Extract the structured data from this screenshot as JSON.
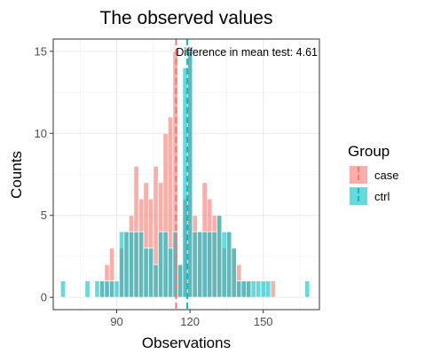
{
  "chart_data": {
    "type": "bar",
    "title": "The observed values",
    "xlabel": "Observations",
    "ylabel": "Counts",
    "xlim": [
      64,
      173
    ],
    "ylim": [
      -0.75,
      15.75
    ],
    "x_ticks": [
      90,
      120,
      150
    ],
    "y_ticks": [
      0,
      5,
      10,
      15
    ],
    "grid": true,
    "bin_width": 2,
    "legend": {
      "title": "Group",
      "placement": "right",
      "entries": [
        "case",
        "ctrl"
      ]
    },
    "annotation": "Difference in mean test: 4.61",
    "series": [
      {
        "name": "case",
        "color": "#F8766D",
        "mean": 114.3,
        "bins": [
          {
            "x": 84,
            "count": 1
          },
          {
            "x": 86,
            "count": 2
          },
          {
            "x": 88,
            "count": 3
          },
          {
            "x": 92,
            "count": 3
          },
          {
            "x": 94,
            "count": 4
          },
          {
            "x": 96,
            "count": 5
          },
          {
            "x": 98,
            "count": 8
          },
          {
            "x": 100,
            "count": 6
          },
          {
            "x": 102,
            "count": 7
          },
          {
            "x": 104,
            "count": 6
          },
          {
            "x": 106,
            "count": 8
          },
          {
            "x": 108,
            "count": 7
          },
          {
            "x": 110,
            "count": 10
          },
          {
            "x": 112,
            "count": 11
          },
          {
            "x": 114,
            "count": 15
          },
          {
            "x": 116,
            "count": 2
          },
          {
            "x": 118,
            "count": 6
          },
          {
            "x": 120,
            "count": 15
          },
          {
            "x": 122,
            "count": 5
          },
          {
            "x": 124,
            "count": 4
          },
          {
            "x": 126,
            "count": 7
          },
          {
            "x": 128,
            "count": 6
          },
          {
            "x": 130,
            "count": 5
          },
          {
            "x": 132,
            "count": 5
          },
          {
            "x": 134,
            "count": 3
          },
          {
            "x": 136,
            "count": 4
          },
          {
            "x": 138,
            "count": 3
          },
          {
            "x": 140,
            "count": 2
          },
          {
            "x": 142,
            "count": 1
          },
          {
            "x": 144,
            "count": 1
          },
          {
            "x": 154,
            "count": 1
          }
        ]
      },
      {
        "name": "ctrl",
        "color": "#00BFC4",
        "mean": 118.9,
        "bins": [
          {
            "x": 68,
            "count": 1
          },
          {
            "x": 78,
            "count": 1
          },
          {
            "x": 82,
            "count": 1
          },
          {
            "x": 84,
            "count": 1
          },
          {
            "x": 86,
            "count": 1
          },
          {
            "x": 88,
            "count": 1
          },
          {
            "x": 90,
            "count": 1
          },
          {
            "x": 92,
            "count": 4
          },
          {
            "x": 94,
            "count": 4
          },
          {
            "x": 96,
            "count": 4
          },
          {
            "x": 98,
            "count": 4
          },
          {
            "x": 100,
            "count": 4
          },
          {
            "x": 102,
            "count": 3
          },
          {
            "x": 104,
            "count": 3
          },
          {
            "x": 106,
            "count": 2
          },
          {
            "x": 108,
            "count": 4
          },
          {
            "x": 110,
            "count": 4
          },
          {
            "x": 112,
            "count": 3
          },
          {
            "x": 114,
            "count": 4
          },
          {
            "x": 116,
            "count": 2
          },
          {
            "x": 118,
            "count": 14
          },
          {
            "x": 120,
            "count": 15
          },
          {
            "x": 122,
            "count": 4
          },
          {
            "x": 124,
            "count": 4
          },
          {
            "x": 126,
            "count": 4
          },
          {
            "x": 128,
            "count": 4
          },
          {
            "x": 130,
            "count": 4
          },
          {
            "x": 132,
            "count": 5
          },
          {
            "x": 134,
            "count": 4
          },
          {
            "x": 136,
            "count": 4
          },
          {
            "x": 138,
            "count": 3
          },
          {
            "x": 140,
            "count": 1
          },
          {
            "x": 142,
            "count": 1
          },
          {
            "x": 144,
            "count": 1
          },
          {
            "x": 146,
            "count": 1
          },
          {
            "x": 148,
            "count": 1
          },
          {
            "x": 150,
            "count": 1
          },
          {
            "x": 152,
            "count": 1
          },
          {
            "x": 168,
            "count": 1
          }
        ]
      }
    ]
  }
}
